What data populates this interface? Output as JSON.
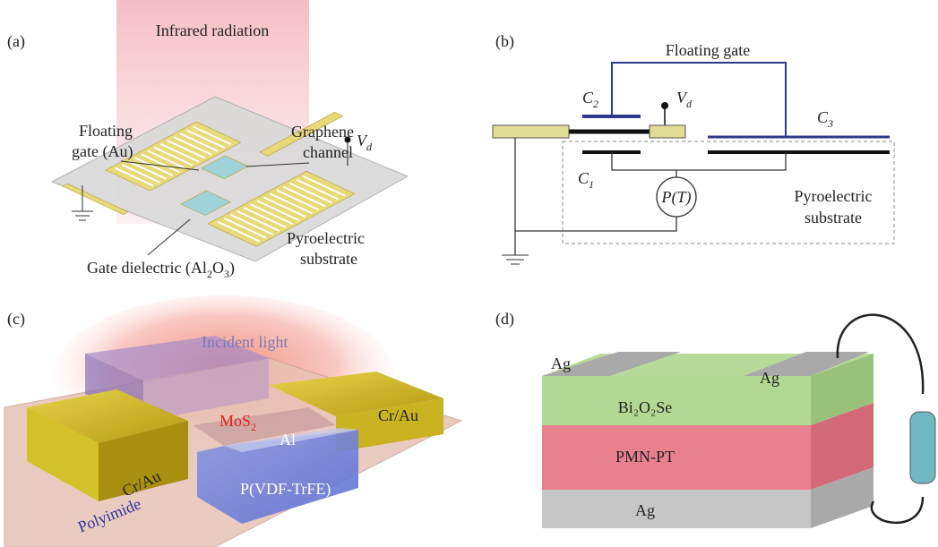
{
  "a": {
    "tag": "(a)",
    "infrared": "Infrared radiation",
    "floating_gate": [
      "Floating",
      "gate (Au)"
    ],
    "graphene": [
      "Graphene",
      "channel"
    ],
    "vd": {
      "text": "V",
      "sub": "d"
    },
    "dielectric": [
      {
        "text": "Gate dielectric (Al"
      },
      {
        "sub": "2"
      },
      {
        "text": "O"
      },
      {
        "sub": "3"
      },
      {
        "text": ")"
      }
    ],
    "substrate": [
      "Pyroelectric",
      "substrate"
    ]
  },
  "b": {
    "tag": "(b)",
    "floating_gate": "Floating gate",
    "c2": {
      "text": "C",
      "sub": "2"
    },
    "vd": {
      "text": "V",
      "sub": "d"
    },
    "c3": {
      "text": "C",
      "sub": "3"
    },
    "c1": {
      "text": "C",
      "sub": "1"
    },
    "source": "P(T)",
    "substrate": [
      "Pyroelectric",
      "substrate"
    ]
  },
  "c": {
    "tag": "(c)",
    "light": "Incident light",
    "channel": {
      "text": "MoS",
      "sub": "2"
    },
    "contact_right": "Cr/Au",
    "contact_left": "Cr/Au",
    "gate": "Al",
    "dielectric": "P(VDF-TrFE)",
    "substrate": "Polyimide"
  },
  "d": {
    "tag": "(d)",
    "top_left": "Ag",
    "top_right": "Ag",
    "layer1": "Bi₂O₂Se",
    "layer2": "PMN-PT",
    "bottom": "Ag"
  }
}
